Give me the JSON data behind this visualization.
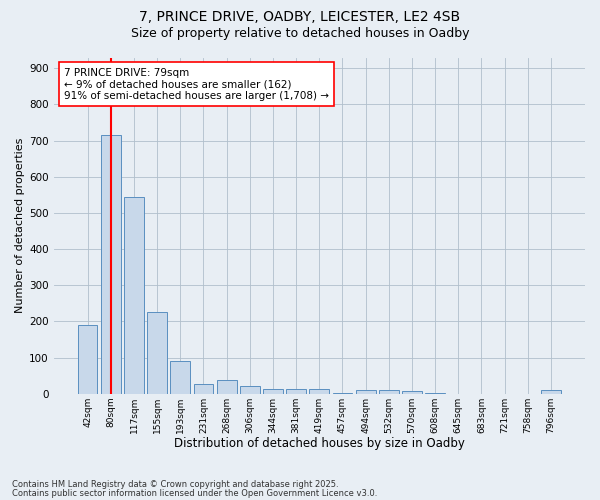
{
  "title1": "7, PRINCE DRIVE, OADBY, LEICESTER, LE2 4SB",
  "title2": "Size of property relative to detached houses in Oadby",
  "xlabel": "Distribution of detached houses by size in Oadby",
  "ylabel": "Number of detached properties",
  "categories": [
    "42sqm",
    "80sqm",
    "117sqm",
    "155sqm",
    "193sqm",
    "231sqm",
    "268sqm",
    "306sqm",
    "344sqm",
    "381sqm",
    "419sqm",
    "457sqm",
    "494sqm",
    "532sqm",
    "570sqm",
    "608sqm",
    "645sqm",
    "683sqm",
    "721sqm",
    "758sqm",
    "796sqm"
  ],
  "values": [
    190,
    715,
    545,
    225,
    90,
    27,
    37,
    22,
    12,
    12,
    12,
    2,
    9,
    9,
    7,
    2,
    0,
    0,
    0,
    0,
    9
  ],
  "bar_color": "#c8d8ea",
  "bar_edge_color": "#5a8fc0",
  "ref_line_x": 1.0,
  "ref_line_color": "red",
  "annotation_text": "7 PRINCE DRIVE: 79sqm\n← 9% of detached houses are smaller (162)\n91% of semi-detached houses are larger (1,708) →",
  "annotation_box_color": "white",
  "annotation_box_edge": "red",
  "ylim": [
    0,
    930
  ],
  "yticks": [
    0,
    100,
    200,
    300,
    400,
    500,
    600,
    700,
    800,
    900
  ],
  "footer1": "Contains HM Land Registry data © Crown copyright and database right 2025.",
  "footer2": "Contains public sector information licensed under the Open Government Licence v3.0.",
  "bg_color": "#e8eef4",
  "plot_bg_color": "#e8eef4",
  "grid_color": "#b0bfcc",
  "title1_fontsize": 10,
  "title2_fontsize": 9,
  "xlabel_fontsize": 8.5,
  "ylabel_fontsize": 8,
  "annotation_fontsize": 7.5
}
